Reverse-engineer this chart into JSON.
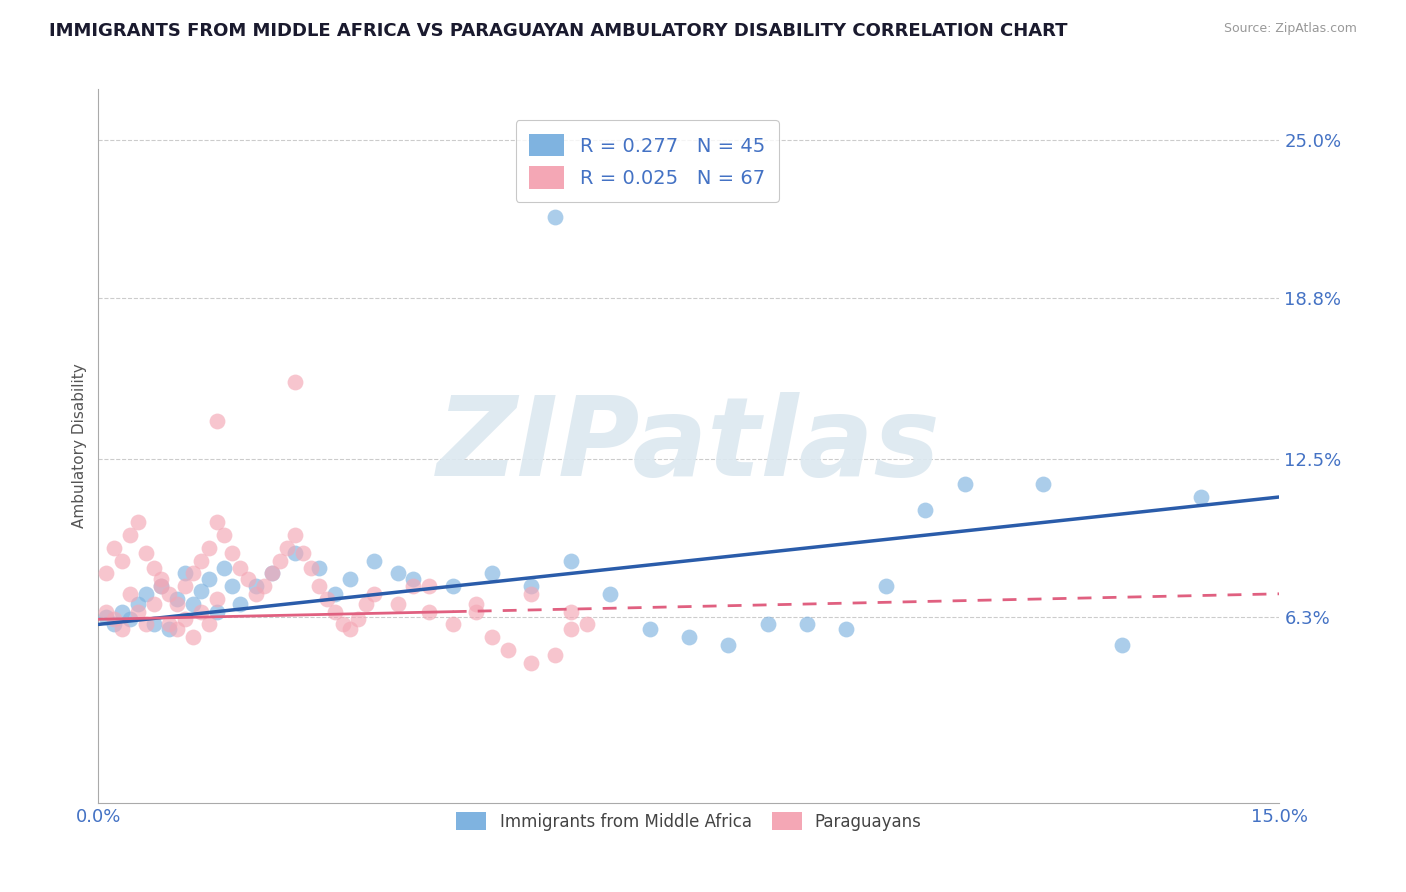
{
  "title": "IMMIGRANTS FROM MIDDLE AFRICA VS PARAGUAYAN AMBULATORY DISABILITY CORRELATION CHART",
  "source": "Source: ZipAtlas.com",
  "ylabel": "Ambulatory Disability",
  "xlim": [
    0.0,
    0.15
  ],
  "ylim": [
    -0.01,
    0.27
  ],
  "xtick_positions": [
    0.0,
    0.15
  ],
  "xtick_labels": [
    "0.0%",
    "15.0%"
  ],
  "ytick_values": [
    0.063,
    0.125,
    0.188,
    0.25
  ],
  "ytick_labels": [
    "6.3%",
    "12.5%",
    "18.8%",
    "25.0%"
  ],
  "grid_color": "#cccccc",
  "background_color": "#ffffff",
  "blue_color": "#7fb3e0",
  "pink_color": "#f4a7b5",
  "blue_line_color": "#2a5caa",
  "pink_line_color": "#e06080",
  "tick_label_color": "#4472c4",
  "legend_label_color": "#4472c4",
  "watermark": "ZIPatlas",
  "watermark_color": "#dce8f0",
  "blue_scatter_x": [
    0.001,
    0.002,
    0.003,
    0.004,
    0.005,
    0.006,
    0.007,
    0.008,
    0.009,
    0.01,
    0.011,
    0.012,
    0.013,
    0.014,
    0.015,
    0.016,
    0.017,
    0.018,
    0.02,
    0.022,
    0.025,
    0.028,
    0.03,
    0.032,
    0.035,
    0.038,
    0.04,
    0.045,
    0.05,
    0.055,
    0.06,
    0.065,
    0.07,
    0.075,
    0.08,
    0.085,
    0.09,
    0.095,
    0.1,
    0.11,
    0.12,
    0.13,
    0.14,
    0.058,
    0.105
  ],
  "blue_scatter_y": [
    0.063,
    0.06,
    0.065,
    0.062,
    0.068,
    0.072,
    0.06,
    0.075,
    0.058,
    0.07,
    0.08,
    0.068,
    0.073,
    0.078,
    0.065,
    0.082,
    0.075,
    0.068,
    0.075,
    0.08,
    0.088,
    0.082,
    0.072,
    0.078,
    0.085,
    0.08,
    0.078,
    0.075,
    0.08,
    0.075,
    0.085,
    0.072,
    0.058,
    0.055,
    0.052,
    0.06,
    0.06,
    0.058,
    0.075,
    0.115,
    0.115,
    0.052,
    0.11,
    0.22,
    0.105
  ],
  "pink_scatter_x": [
    0.001,
    0.002,
    0.003,
    0.004,
    0.005,
    0.006,
    0.007,
    0.008,
    0.009,
    0.01,
    0.011,
    0.012,
    0.013,
    0.014,
    0.015,
    0.001,
    0.002,
    0.003,
    0.004,
    0.005,
    0.006,
    0.007,
    0.008,
    0.009,
    0.01,
    0.011,
    0.012,
    0.013,
    0.014,
    0.015,
    0.016,
    0.017,
    0.018,
    0.019,
    0.02,
    0.021,
    0.022,
    0.023,
    0.024,
    0.025,
    0.026,
    0.027,
    0.028,
    0.029,
    0.03,
    0.031,
    0.032,
    0.033,
    0.034,
    0.035,
    0.04,
    0.042,
    0.045,
    0.048,
    0.05,
    0.052,
    0.055,
    0.058,
    0.06,
    0.062,
    0.015,
    0.025,
    0.038,
    0.042,
    0.048,
    0.055,
    0.06
  ],
  "pink_scatter_y": [
    0.065,
    0.062,
    0.058,
    0.072,
    0.065,
    0.06,
    0.068,
    0.075,
    0.06,
    0.058,
    0.062,
    0.055,
    0.065,
    0.06,
    0.07,
    0.08,
    0.09,
    0.085,
    0.095,
    0.1,
    0.088,
    0.082,
    0.078,
    0.072,
    0.068,
    0.075,
    0.08,
    0.085,
    0.09,
    0.1,
    0.095,
    0.088,
    0.082,
    0.078,
    0.072,
    0.075,
    0.08,
    0.085,
    0.09,
    0.095,
    0.088,
    0.082,
    0.075,
    0.07,
    0.065,
    0.06,
    0.058,
    0.062,
    0.068,
    0.072,
    0.075,
    0.065,
    0.06,
    0.068,
    0.055,
    0.05,
    0.045,
    0.048,
    0.058,
    0.06,
    0.14,
    0.155,
    0.068,
    0.075,
    0.065,
    0.072,
    0.065
  ],
  "blue_line_x": [
    0.0,
    0.15
  ],
  "blue_line_y": [
    0.06,
    0.11
  ],
  "pink_line_x": [
    0.0,
    0.15
  ],
  "pink_line_y": [
    0.062,
    0.072
  ],
  "pink_line_solid_end": 0.045
}
